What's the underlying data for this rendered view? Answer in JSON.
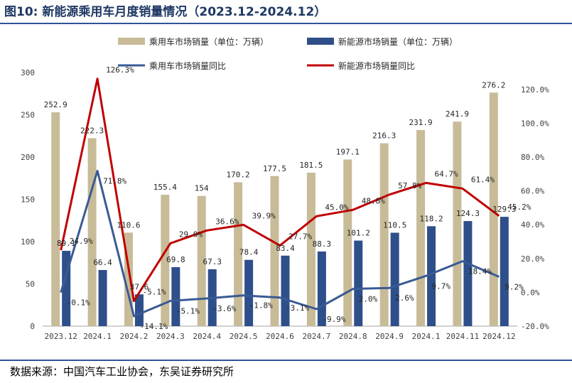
{
  "title": "图10:  新能源乘用车月度销量情况（2023.12-2024.12）",
  "source": "数据来源：中国汽车工业协会，东吴证券研究所",
  "colors": {
    "total_bar": "#c8bb98",
    "nev_bar": "#2e4f8a",
    "total_line": "#3a5a95",
    "nev_line": "#c00000",
    "title": "#1f3864",
    "rule": "#2f5496"
  },
  "chart_data": {
    "type": "bar",
    "categories": [
      "2023.12",
      "2024.1",
      "2024.2",
      "2024.3",
      "2024.4",
      "2024.5",
      "2024.6",
      "2024.7",
      "2024.8",
      "2024.9",
      "2024.1",
      "2024.11",
      "2024.12"
    ],
    "series": [
      {
        "name": "乘用车市场销量（单位：万辆）",
        "type": "bar",
        "axis": "left",
        "values": [
          252.9,
          222.3,
          110.6,
          155.4,
          154,
          170.2,
          177.5,
          181.5,
          197.1,
          216.3,
          231.9,
          241.9,
          276.2
        ],
        "labels": [
          "252.9",
          "222.3",
          "110.6",
          "155.4",
          "154",
          "170.2",
          "177.5",
          "181.5",
          "197.1",
          "216.3",
          "231.9",
          "241.9",
          "276.2"
        ]
      },
      {
        "name": "新能源市场销量（单位：万辆）",
        "type": "bar",
        "axis": "left",
        "values": [
          89.1,
          66.4,
          37.6,
          69.8,
          67.3,
          78.4,
          83.4,
          88.3,
          101.2,
          110.5,
          118.2,
          124.3,
          129.3
        ],
        "labels": [
          "89.1",
          "66.4",
          "37.6",
          "69.8",
          "67.3",
          "78.4",
          "83.4",
          "88.3",
          "101.2",
          "110.5",
          "118.2",
          "124.3",
          "129.3"
        ]
      },
      {
        "name": "乘用车市场销量同比",
        "type": "line",
        "axis": "right",
        "values": [
          -0.1,
          71.8,
          -14.1,
          -5.1,
          -3.6,
          -1.8,
          -3.1,
          -9.9,
          2.0,
          2.6,
          9.7,
          18.4,
          9.2
        ],
        "labels": [
          "-0.1%",
          "71.8%",
          "-14.1%",
          "-5.1%",
          "-3.6%",
          "-1.8%",
          "-3.1%",
          "-9.9%",
          "2.0%",
          "2.6%",
          "9.7%",
          "18.4%",
          "9.2%"
        ]
      },
      {
        "name": "新能源市场销量同比",
        "type": "line",
        "axis": "right",
        "values": [
          24.9,
          126.3,
          -5.1,
          29.0,
          36.6,
          39.9,
          27.7,
          45.0,
          48.8,
          57.8,
          64.7,
          61.4,
          45.2
        ],
        "labels": [
          "24.9%",
          "126.3%",
          "-5.1%",
          "29.0%",
          "36.6%",
          "39.9%",
          "27.7%",
          "45.0%",
          "48.8%",
          "57.8%",
          "64.7%",
          "61.4%",
          "45.2%"
        ]
      }
    ],
    "y_left": {
      "min": 0,
      "max": 300,
      "ticks": [
        0,
        50,
        100,
        150,
        200,
        250,
        300
      ],
      "tick_labels": [
        "0",
        "50",
        "100",
        "150",
        "200",
        "250",
        "300"
      ]
    },
    "y_right": {
      "min": -20,
      "max": 130,
      "ticks": [
        -20,
        0,
        20,
        40,
        60,
        80,
        100,
        120
      ],
      "tick_labels": [
        "-20.0%",
        "0.0%",
        "20.0%",
        "40.0%",
        "60.0%",
        "80.0%",
        "100.0%",
        "120.0%"
      ]
    },
    "legend_position": "top",
    "grid": false
  }
}
